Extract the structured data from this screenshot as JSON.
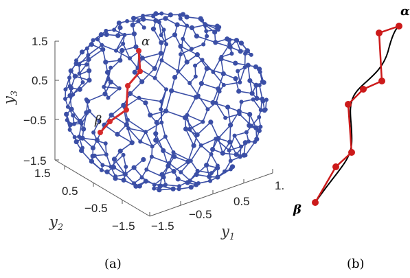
{
  "panel_a": {
    "caption": "(a)",
    "axes": {
      "y3": {
        "label": "y",
        "sub": "3",
        "ticks": [
          "1.5",
          "0.5",
          "−0.5",
          "−1.5"
        ]
      },
      "y2": {
        "label": "y",
        "sub": "2",
        "ticks": [
          "1.5",
          "0.5",
          "−0.5",
          "−1.5"
        ]
      },
      "y1": {
        "label": "y",
        "sub": "1",
        "ticks": [
          "−1.5",
          "−0.5",
          "0.5",
          "1."
        ]
      }
    },
    "endpoints": {
      "start": "α",
      "end": "β"
    },
    "colors": {
      "graph": "#3b4fa6",
      "path": "#d42a2a"
    }
  },
  "panel_b": {
    "caption": "(b)",
    "endpoints": {
      "start": "α",
      "end": "β"
    },
    "colors": {
      "curve": "#000000",
      "path": "#cc1a1a"
    }
  }
}
